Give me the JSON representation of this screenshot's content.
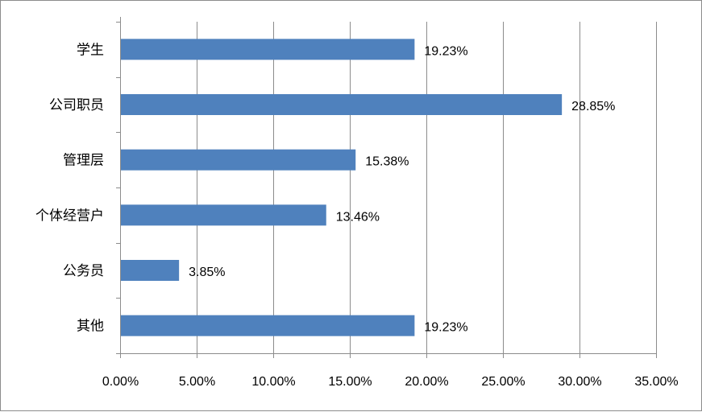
{
  "chart_data": {
    "type": "bar",
    "orientation": "horizontal",
    "title": "",
    "xlabel": "",
    "ylabel": "",
    "categories": [
      "学生",
      "公司职员",
      "管理层",
      "个体经营户",
      "公务员",
      "其他"
    ],
    "values": [
      19.23,
      28.85,
      15.38,
      13.46,
      3.85,
      19.23
    ],
    "data_labels": [
      "19.23%",
      "28.85%",
      "15.38%",
      "13.46%",
      "3.85%",
      "19.23%"
    ],
    "xlim": [
      0,
      35
    ],
    "xticks": [
      0,
      5,
      10,
      15,
      20,
      25,
      30,
      35
    ],
    "xtick_labels": [
      "0.00%",
      "5.00%",
      "10.00%",
      "15.00%",
      "20.00%",
      "25.00%",
      "30.00%",
      "35.00%"
    ],
    "grid": "vertical",
    "legend": "none",
    "bar_color": "#4f81bd",
    "grid_color": "#8c8c8c"
  }
}
